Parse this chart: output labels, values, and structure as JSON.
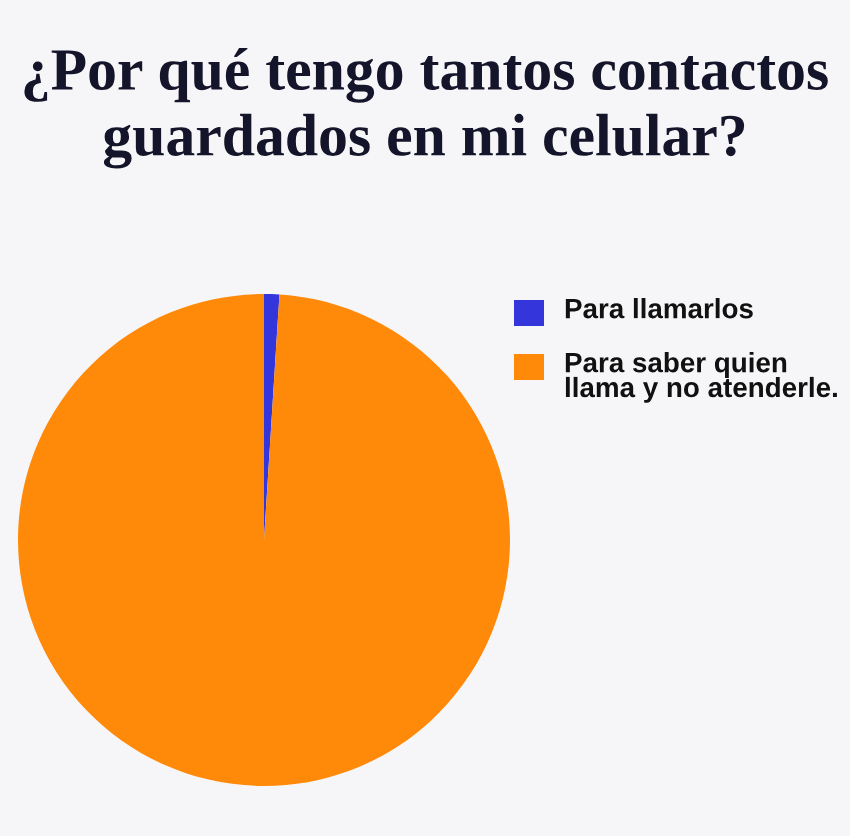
{
  "chart_data": {
    "type": "pie",
    "title": "¿Por qué tengo tantos contactos\nguardados en mi celular?",
    "categories": [
      "Para llamarlos",
      "Para saber quien\nllama y no atenderle."
    ],
    "values": [
      1,
      99
    ],
    "colors": [
      "#3535dc",
      "#ff8a0a"
    ],
    "legend": "right"
  }
}
